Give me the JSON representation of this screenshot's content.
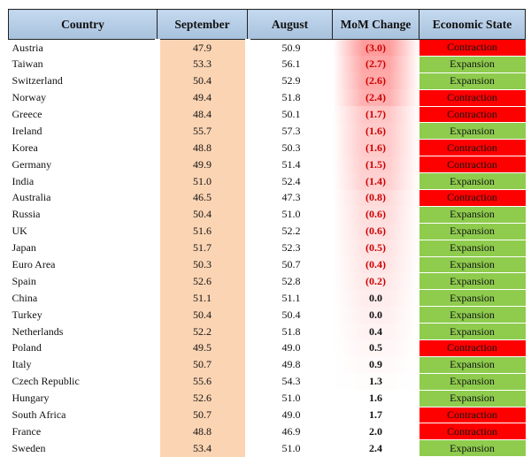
{
  "chart_data": {
    "type": "table",
    "columns": [
      "Country",
      "September",
      "August",
      "MoM Change",
      "Economic State"
    ],
    "rows": [
      {
        "country": "Austria",
        "september": "47.9",
        "august": "50.9",
        "mom": "(3.0)",
        "mom_value": -3.0,
        "state": "Contraction"
      },
      {
        "country": "Taiwan",
        "september": "53.3",
        "august": "56.1",
        "mom": "(2.7)",
        "mom_value": -2.7,
        "state": "Expansion"
      },
      {
        "country": "Switzerland",
        "september": "50.4",
        "august": "52.9",
        "mom": "(2.6)",
        "mom_value": -2.6,
        "state": "Expansion"
      },
      {
        "country": "Norway",
        "september": "49.4",
        "august": "51.8",
        "mom": "(2.4)",
        "mom_value": -2.4,
        "state": "Contraction"
      },
      {
        "country": "Greece",
        "september": "48.4",
        "august": "50.1",
        "mom": "(1.7)",
        "mom_value": -1.7,
        "state": "Contraction"
      },
      {
        "country": "Ireland",
        "september": "55.7",
        "august": "57.3",
        "mom": "(1.6)",
        "mom_value": -1.6,
        "state": "Expansion"
      },
      {
        "country": "Korea",
        "september": "48.8",
        "august": "50.3",
        "mom": "(1.6)",
        "mom_value": -1.6,
        "state": "Contraction"
      },
      {
        "country": "Germany",
        "september": "49.9",
        "august": "51.4",
        "mom": "(1.5)",
        "mom_value": -1.5,
        "state": "Contraction"
      },
      {
        "country": "India",
        "september": "51.0",
        "august": "52.4",
        "mom": "(1.4)",
        "mom_value": -1.4,
        "state": "Expansion"
      },
      {
        "country": "Australia",
        "september": "46.5",
        "august": "47.3",
        "mom": "(0.8)",
        "mom_value": -0.8,
        "state": "Contraction"
      },
      {
        "country": "Russia",
        "september": "50.4",
        "august": "51.0",
        "mom": "(0.6)",
        "mom_value": -0.6,
        "state": "Expansion"
      },
      {
        "country": "UK",
        "september": "51.6",
        "august": "52.2",
        "mom": "(0.6)",
        "mom_value": -0.6,
        "state": "Expansion"
      },
      {
        "country": "Japan",
        "september": "51.7",
        "august": "52.3",
        "mom": "(0.5)",
        "mom_value": -0.5,
        "state": "Expansion"
      },
      {
        "country": "Euro Area",
        "september": "50.3",
        "august": "50.7",
        "mom": "(0.4)",
        "mom_value": -0.4,
        "state": "Expansion"
      },
      {
        "country": "Spain",
        "september": "52.6",
        "august": "52.8",
        "mom": "(0.2)",
        "mom_value": -0.2,
        "state": "Expansion"
      },
      {
        "country": "China",
        "september": "51.1",
        "august": "51.1",
        "mom": "0.0",
        "mom_value": 0.0,
        "state": "Expansion"
      },
      {
        "country": "Turkey",
        "september": "50.4",
        "august": "50.4",
        "mom": "0.0",
        "mom_value": 0.0,
        "state": "Expansion"
      },
      {
        "country": "Netherlands",
        "september": "52.2",
        "august": "51.8",
        "mom": "0.4",
        "mom_value": 0.4,
        "state": "Expansion"
      },
      {
        "country": "Poland",
        "september": "49.5",
        "august": "49.0",
        "mom": "0.5",
        "mom_value": 0.5,
        "state": "Contraction"
      },
      {
        "country": "Italy",
        "september": "50.7",
        "august": "49.8",
        "mom": "0.9",
        "mom_value": 0.9,
        "state": "Expansion"
      },
      {
        "country": "Czech Republic",
        "september": "55.6",
        "august": "54.3",
        "mom": "1.3",
        "mom_value": 1.3,
        "state": "Expansion"
      },
      {
        "country": "Hungary",
        "september": "52.6",
        "august": "51.0",
        "mom": "1.6",
        "mom_value": 1.6,
        "state": "Expansion"
      },
      {
        "country": "South Africa",
        "september": "50.7",
        "august": "49.0",
        "mom": "1.7",
        "mom_value": 1.7,
        "state": "Contraction"
      },
      {
        "country": "France",
        "september": "48.8",
        "august": "46.9",
        "mom": "2.0",
        "mom_value": 2.0,
        "state": "Contraction"
      },
      {
        "country": "Sweden",
        "september": "53.4",
        "august": "51.0",
        "mom": "2.4",
        "mom_value": 2.4,
        "state": "Expansion"
      }
    ]
  },
  "colors": {
    "header_bg": "#b5cce6",
    "september_fill": "#fbd4b3",
    "mom_shade": "#ff8a8a",
    "negative_text": "#cc0000",
    "expansion": "#8fcc4e",
    "contraction": "#ff0000"
  }
}
